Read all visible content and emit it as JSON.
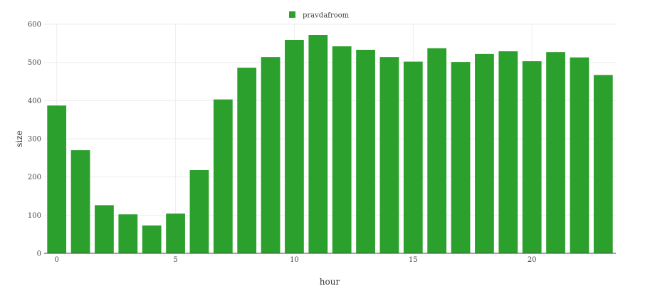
{
  "chart_data": {
    "type": "bar",
    "title": "",
    "xlabel": "hour",
    "ylabel": "size",
    "legend": {
      "position": "top-center",
      "entries": [
        "pravdafroom"
      ]
    },
    "grid": true,
    "xlim": [
      -0.5,
      23.5
    ],
    "ylim": [
      0,
      600
    ],
    "x_ticks": [
      0,
      5,
      10,
      15,
      20
    ],
    "y_ticks": [
      0,
      100,
      200,
      300,
      400,
      500,
      600
    ],
    "x": [
      0,
      1,
      2,
      3,
      4,
      5,
      6,
      7,
      8,
      9,
      10,
      11,
      12,
      13,
      14,
      15,
      16,
      17,
      18,
      19,
      20,
      21,
      22,
      23
    ],
    "series": [
      {
        "name": "pravdafroom",
        "color": "#2ca02c",
        "values": [
          387,
          270,
          126,
          102,
          73,
          104,
          218,
          403,
          486,
          514,
          559,
          572,
          542,
          533,
          514,
          502,
          537,
          501,
          522,
          529,
          503,
          527,
          513,
          467
        ]
      }
    ]
  }
}
